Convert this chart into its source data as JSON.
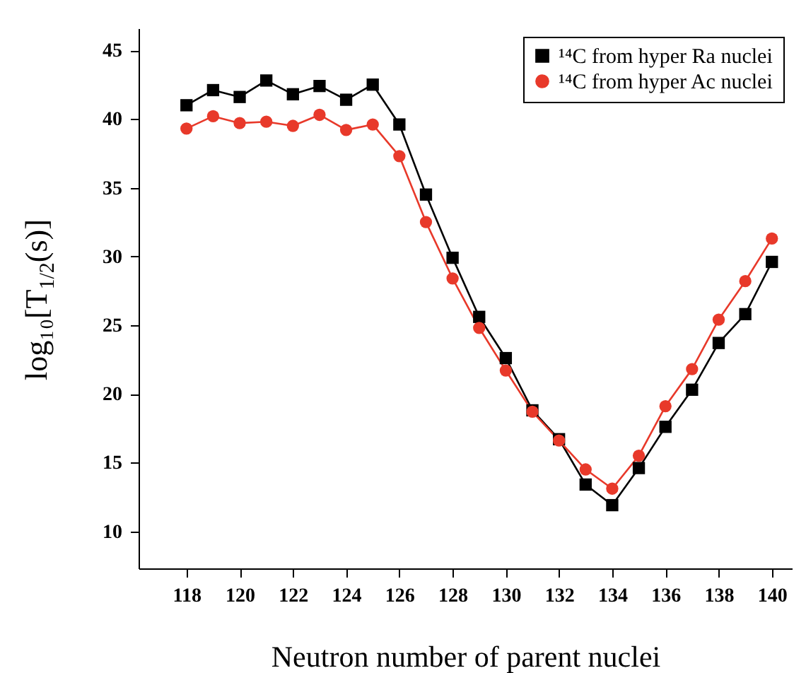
{
  "chart_data": {
    "type": "line",
    "xlabel": "Neutron number of parent nuclei",
    "ylabel": "log₁₀[T$_{1/2}$(s)]",
    "x": [
      118,
      119,
      120,
      121,
      122,
      123,
      124,
      125,
      126,
      127,
      128,
      129,
      130,
      131,
      132,
      133,
      134,
      135,
      136,
      137,
      138,
      139,
      140
    ],
    "series": [
      {
        "name": "¹⁴C from hyper Ra nuclei",
        "color": "#000000",
        "marker": "square",
        "values": [
          41.0,
          42.1,
          41.6,
          42.8,
          41.8,
          42.4,
          41.4,
          42.5,
          39.6,
          34.5,
          29.9,
          25.6,
          22.6,
          18.8,
          16.7,
          13.4,
          11.9,
          14.6,
          17.6,
          20.3,
          23.7,
          25.8,
          29.6
        ]
      },
      {
        "name": "¹⁴C from hyper Ac nuclei",
        "color": "#e8392a",
        "marker": "circle",
        "values": [
          39.3,
          40.2,
          39.7,
          39.8,
          39.5,
          40.3,
          39.2,
          39.6,
          37.3,
          32.5,
          28.4,
          24.8,
          21.7,
          18.7,
          16.6,
          14.5,
          13.1,
          15.5,
          19.1,
          21.8,
          25.4,
          28.2,
          31.3
        ]
      }
    ],
    "xlim": [
      116.2,
      140.75
    ],
    "ylim": [
      7.3,
      46.6
    ],
    "xticks": [
      118,
      120,
      122,
      124,
      126,
      128,
      130,
      132,
      134,
      136,
      138,
      140
    ],
    "yticks": [
      10,
      15,
      20,
      25,
      30,
      35,
      40,
      45
    ],
    "grid": false,
    "line_style": "solid",
    "legend": "top right"
  }
}
